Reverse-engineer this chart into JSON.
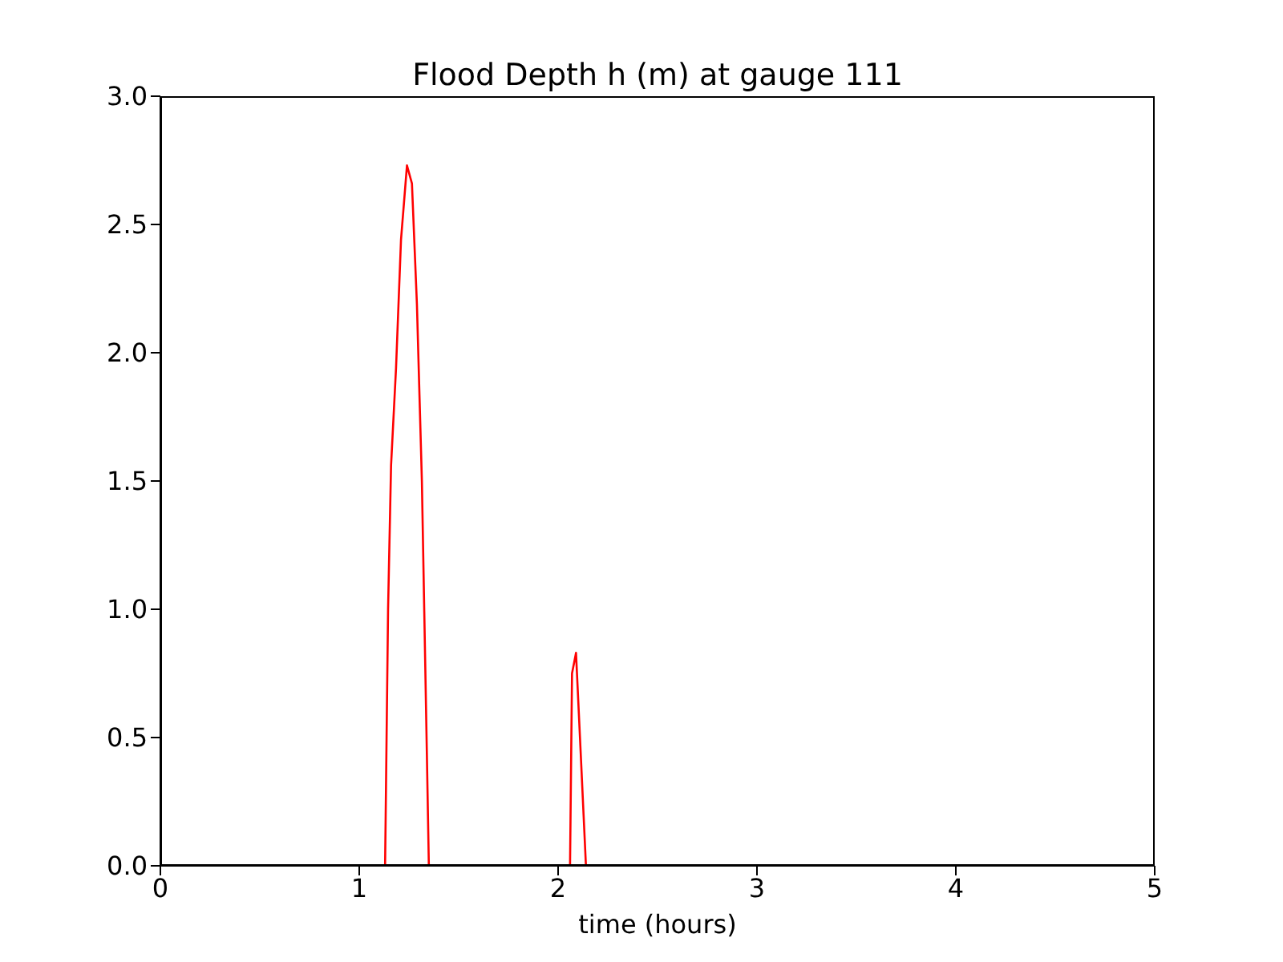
{
  "chart_data": {
    "type": "line",
    "title": "Flood Depth h (m) at gauge 111",
    "xlabel": "time (hours)",
    "xlim": [
      0,
      5
    ],
    "xticks": [
      0,
      1,
      2,
      3,
      4,
      5
    ],
    "ylim": [
      0,
      3
    ],
    "yticks": [
      {
        "value": 0,
        "label": "0.0"
      },
      {
        "value": 0.5,
        "label": "0.5"
      },
      {
        "value": 1,
        "label": "1.0"
      },
      {
        "value": 1.5,
        "label": "1.5"
      },
      {
        "value": 2,
        "label": "2.0"
      },
      {
        "value": 2.5,
        "label": "2.5"
      },
      {
        "value": 3,
        "label": "3.0"
      }
    ],
    "grid": false,
    "marker": "none",
    "series": [
      {
        "color": "#ff0000",
        "line_style": "solid",
        "x": [
          0,
          1.12,
          1.13,
          1.145,
          1.16,
          1.185,
          1.21,
          1.24,
          1.265,
          1.29,
          1.315,
          1.34,
          1.35,
          2.06,
          2.07,
          2.09,
          2.11,
          2.14,
          5
        ],
        "values": [
          0,
          0,
          0,
          1.0,
          1.56,
          1.94,
          2.44,
          2.73,
          2.66,
          2.19,
          1.5,
          0.44,
          0,
          0,
          0.75,
          0.83,
          0.5,
          0,
          0
        ]
      },
      {
        "color": "#000000",
        "line_style": "dashed",
        "x": [
          0,
          5
        ],
        "values": [
          0,
          0
        ]
      }
    ]
  }
}
